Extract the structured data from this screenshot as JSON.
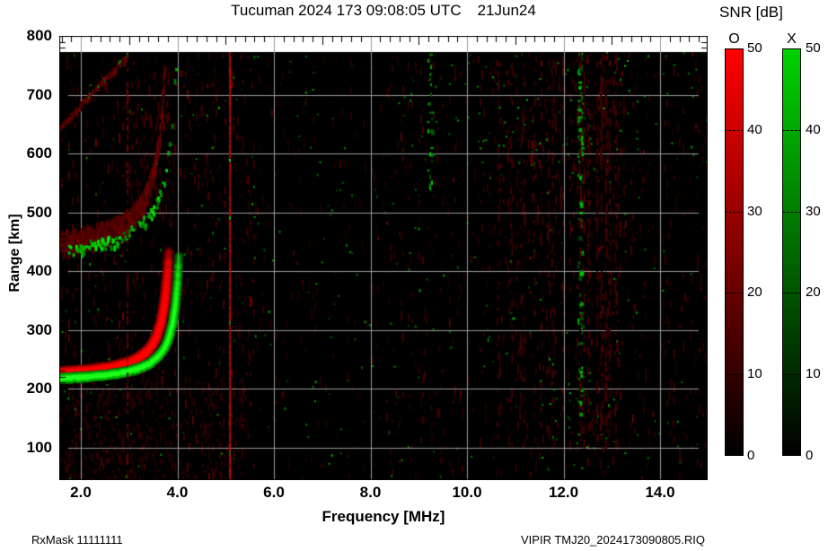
{
  "title": {
    "main": "Tucuman 2024 173 09:08:05 UTC",
    "date": "21Jun24"
  },
  "footer": {
    "left": "RxMask 11111111",
    "right": "VIPIR  TMJ20_2024173090805.RIQ"
  },
  "axes": {
    "x": {
      "label": "Frequency [MHz]",
      "ticks": [
        {
          "value": 2,
          "label": "2.0"
        },
        {
          "value": 4,
          "label": "4.0"
        },
        {
          "value": 6,
          "label": "6.0"
        },
        {
          "value": 8,
          "label": "8.0"
        },
        {
          "value": 10,
          "label": "10.0"
        },
        {
          "value": 12,
          "label": "12.0"
        },
        {
          "value": 14,
          "label": "14.0"
        }
      ]
    },
    "y": {
      "label": "Range [km]",
      "ticks": [
        {
          "value": 800,
          "label": "800"
        },
        {
          "value": 700,
          "label": "700"
        },
        {
          "value": 600,
          "label": "600"
        },
        {
          "value": 500,
          "label": "500"
        },
        {
          "value": 400,
          "label": "400"
        },
        {
          "value": 300,
          "label": "300"
        },
        {
          "value": 200,
          "label": "200"
        },
        {
          "value": 100,
          "label": "100"
        }
      ]
    }
  },
  "colorbar": {
    "title": "SNR [dB]",
    "o_label": "O",
    "x_label": "X",
    "o_color": "#ff0000",
    "x_color": "#00d200",
    "ticks": [
      {
        "value": 50,
        "label": "50"
      },
      {
        "value": 40,
        "label": "40"
      },
      {
        "value": 30,
        "label": "30"
      },
      {
        "value": 20,
        "label": "20"
      },
      {
        "value": 10,
        "label": "10"
      },
      {
        "value": 0,
        "label": "0"
      }
    ]
  },
  "chart_data": {
    "type": "heatmap",
    "description": "VIPIR ionogram: echo SNR versus sounding frequency and virtual range; O-mode shown in red, X-mode in green on black background",
    "x_axis": {
      "label": "Frequency [MHz]",
      "min": 1.55,
      "max": 15.0,
      "major_tick_step_mhz": 2,
      "minor_tick_step_mhz": 0.2
    },
    "y_axis": {
      "label": "Range [km]",
      "min": 44,
      "max": 800,
      "data_top_km": 772,
      "major_tick_step_km": 100,
      "minor_tick_step_km": 10
    },
    "snr_scale": {
      "label": "SNR [dB]",
      "min": 0,
      "max": 50,
      "o_max_color": "#ff0000",
      "x_max_color": "#00d200",
      "zero_color": "#000000"
    },
    "grid": {
      "color": "#9b9b9b",
      "x_step_mhz": 2,
      "y_step_km": 100
    },
    "echo_traces": [
      {
        "name": "F-region 1st hop O-mode",
        "mode": "O",
        "style": "solid",
        "base_range_km": 215,
        "curvature": 28,
        "critical_frequency_mhz": 3.95,
        "min_freq_mhz": 1.55,
        "max_range_km": 440,
        "fade_start_km": 320,
        "peak_snr_db": 50
      },
      {
        "name": "F-region 1st hop X-mode",
        "mode": "X",
        "style": "solid",
        "base_range_km": 207,
        "curvature": 26,
        "critical_frequency_mhz": 4.15,
        "min_freq_mhz": 1.55,
        "max_range_km": 430,
        "fade_start_km": 310,
        "peak_snr_db": 50
      },
      {
        "name": "2nd hop O-mode (diffuse)",
        "mode": "O",
        "style": "diffuse",
        "base_range_km": 428,
        "curvature": 58,
        "critical_frequency_mhz": 3.9,
        "min_freq_mhz": 1.55,
        "max_range_km": 772,
        "peak_snr_db": 18
      },
      {
        "name": "2nd hop X-mode (speckle)",
        "mode": "X",
        "style": "speckle",
        "base_range_km": 412,
        "curvature": 60,
        "critical_frequency_mhz": 4.1,
        "min_freq_mhz": 1.7,
        "max_range_km": 772,
        "peak_snr_db": 30
      },
      {
        "name": "oblique streak upper-left",
        "mode": "O",
        "style": "streak",
        "from_mhz_km": [
          1.55,
          648
        ],
        "to_mhz_km": [
          3.25,
          795
        ],
        "peak_snr_db": 15
      }
    ],
    "rfi_lines": [
      {
        "freq_mhz": 2.95,
        "mode": "O",
        "style": "patchy",
        "range_km": [
          44,
          772
        ],
        "strength": "weak"
      },
      {
        "freq_mhz": 5.07,
        "mode": "O",
        "style": "solid",
        "range_km": [
          44,
          772
        ],
        "strength": "strong"
      },
      {
        "freq_mhz": 9.22,
        "mode": "X",
        "style": "dots",
        "range_km": [
          540,
          772
        ],
        "count": 28,
        "strength": "weak"
      },
      {
        "freq_mhz": 12.33,
        "mode": "X",
        "style": "dots",
        "range_km": [
          150,
          772
        ],
        "count": 95,
        "strength": "moderate"
      },
      {
        "freq_band_mhz": [
          12.3,
          13.0
        ],
        "mode": "O",
        "style": "band",
        "range_km": [
          100,
          772
        ],
        "strength": "diffuse"
      }
    ],
    "noise": {
      "background_green_dots": 330,
      "red_striation": "dark-red vertical dashes over full plot, denser below 5.6 MHz, 11.3-13.3 MHz and in lower-left quadrant"
    }
  }
}
